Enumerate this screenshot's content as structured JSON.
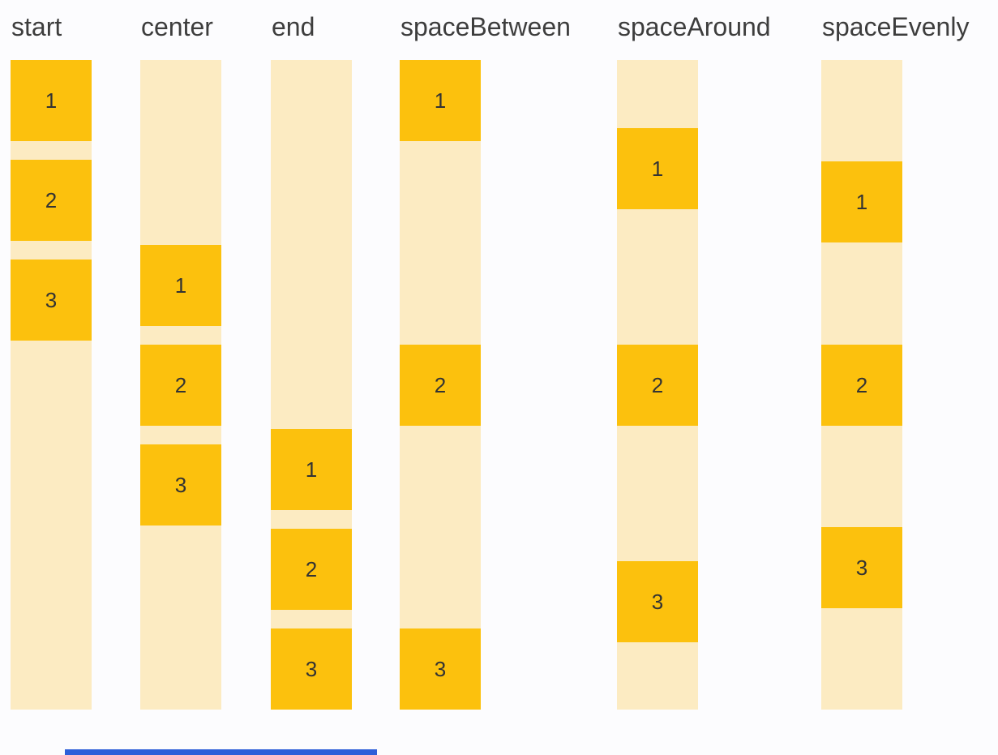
{
  "page": {
    "background": "#fcfcfe"
  },
  "colors": {
    "track": "#fcebc2",
    "box": "#fcc10d",
    "label_text": "#3d3d3d",
    "number_text": "#333333",
    "bottom_bar": "#2e5fd9"
  },
  "columns": [
    {
      "label": "start",
      "mode": "start",
      "items": [
        "1",
        "2",
        "3"
      ]
    },
    {
      "label": "center",
      "mode": "center",
      "items": [
        "1",
        "2",
        "3"
      ]
    },
    {
      "label": "end",
      "mode": "end",
      "items": [
        "1",
        "2",
        "3"
      ]
    },
    {
      "label": "spaceBetween",
      "mode": "space-between",
      "items": [
        "1",
        "2",
        "3"
      ]
    },
    {
      "label": "spaceAround",
      "mode": "space-around",
      "items": [
        "1",
        "2",
        "3"
      ]
    },
    {
      "label": "spaceEvenly",
      "mode": "space-evenly",
      "items": [
        "1",
        "2",
        "3"
      ]
    }
  ]
}
